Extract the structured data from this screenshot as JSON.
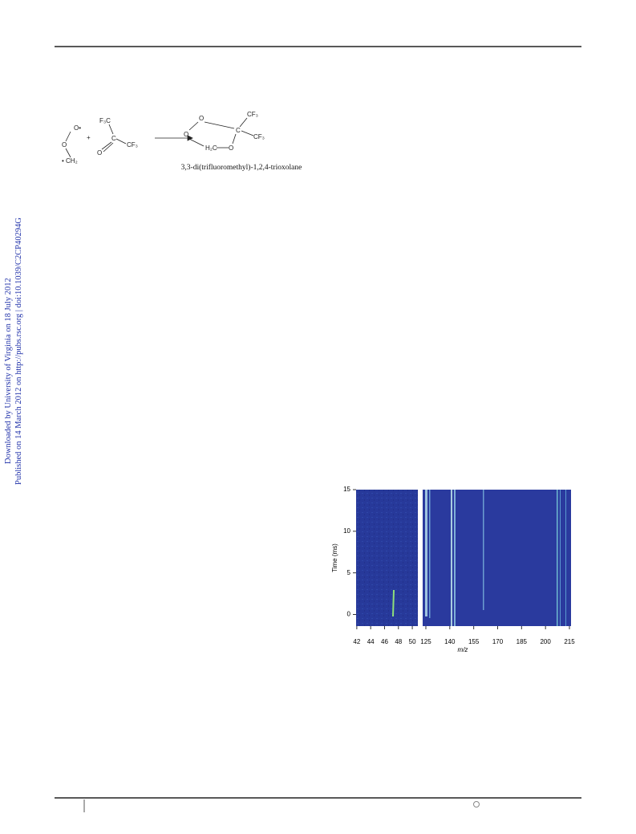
{
  "side_note": [
    "Downloaded by University of Virginia on 18 July 2012",
    "Published on 14 March 2012 on http://pubs.rsc.org | doi:10.1039/C2CP40294G"
  ],
  "scheme": {
    "reactant_1": [
      "O•",
      "O",
      "• CH₂"
    ],
    "plus": "+",
    "reactant_2": [
      "F₃C",
      "C",
      "O",
      "CF₃"
    ],
    "product": [
      "O",
      "O",
      "C",
      "CF₃",
      "CF₃",
      "H₂C",
      "O"
    ],
    "product_name": "3,3-di(trifluoromethyl)-1,2,4-trioxolane"
  },
  "figure": {
    "y_label": "Time (ms)",
    "x_label": "m/z",
    "ylim": [
      -1.4,
      15
    ],
    "yticks": [
      0,
      5,
      10,
      15
    ],
    "left_xlim": [
      41.9,
      50.8
    ],
    "left_xticks": [
      42,
      44,
      46,
      48,
      50
    ],
    "right_xlim": [
      123,
      216
    ],
    "right_xticks": [
      125,
      140,
      155,
      170,
      185,
      200,
      215
    ]
  }
}
